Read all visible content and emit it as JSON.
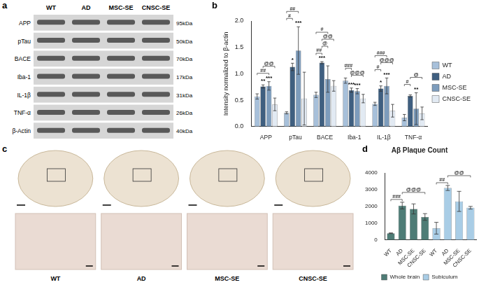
{
  "panels": {
    "a": {
      "label": "a",
      "lanes": [
        "WT",
        "AD",
        "MSC-SE",
        "CNSC-SE"
      ],
      "rows": [
        {
          "name": "APP",
          "size": "95kDa"
        },
        {
          "name": "pTau",
          "size": "50kDa"
        },
        {
          "name": "BACE",
          "size": "70kDa"
        },
        {
          "name": "Iba-1",
          "size": "17kDa"
        },
        {
          "name": "IL-1β",
          "size": "31kDa"
        },
        {
          "name": "TNF-α",
          "size": "26kDa"
        },
        {
          "name": "β-Actin",
          "size": "40kDa"
        }
      ]
    },
    "c": {
      "label": "c",
      "images": [
        "WT",
        "AD",
        "MSC-SE",
        "CNSC-SE"
      ]
    }
  },
  "chart_data": [
    {
      "label": "b",
      "type": "bar",
      "y_label": "Intensity normalized to β-actin",
      "categories": [
        "APP",
        "pTau",
        "BACE",
        "Iba-1",
        "IL-1β",
        "TNF-α"
      ],
      "series": [
        {
          "name": "WT",
          "color": "#a7c0da",
          "values": [
            0.57,
            0.26,
            0.6,
            0.87,
            0.43,
            0.17
          ],
          "errors": [
            0.05,
            0.02,
            0.05,
            0.05,
            0.03,
            0.06
          ]
        },
        {
          "name": "AD",
          "color": "#3f5f80",
          "values": [
            0.76,
            1.13,
            1.21,
            0.69,
            0.72,
            0.58
          ],
          "errors": [
            0.03,
            0.07,
            0.02,
            0.04,
            0.05,
            0.02
          ],
          "stars": [
            "**",
            "*",
            "***",
            "***",
            "*",
            null
          ]
        },
        {
          "name": "MSC-SE",
          "color": "#7d9cbc",
          "values": [
            0.77,
            1.44,
            0.9,
            0.67,
            0.77,
            0.34
          ],
          "errors": [
            0.08,
            0.45,
            0.25,
            0.05,
            0.15,
            0.3
          ],
          "stars": [
            "***",
            "***",
            null,
            "***",
            "***",
            "**"
          ]
        },
        {
          "name": "CNSC-SE",
          "color": "#e2eaf3",
          "values": [
            0.42,
            0.53,
            0.77,
            0.53,
            0.3,
            0.25
          ],
          "errors": [
            0.12,
            0.5,
            0.1,
            0.08,
            0.12,
            0.12
          ]
        }
      ],
      "ylim": [
        0,
        2
      ],
      "yticks": [
        {
          "value": 0,
          "label": "0.0"
        },
        {
          "value": 0.5,
          "label": "0.5"
        },
        {
          "value": 1,
          "label": "1.0"
        },
        {
          "value": 1.5,
          "label": "1.5"
        },
        {
          "value": 2,
          "label": "2.0"
        }
      ],
      "grid": false,
      "legend": "right",
      "brackets": [
        {
          "category": "APP",
          "from": "WT",
          "to": "MSC-SE",
          "label": "##"
        },
        {
          "category": "APP",
          "from": "AD",
          "to": "CNSC-SE",
          "label": "@@"
        },
        {
          "category": "pTau",
          "from": "WT",
          "to": "AD",
          "label": "#"
        },
        {
          "category": "pTau",
          "from": "WT",
          "to": "MSC-SE",
          "label": "##"
        },
        {
          "category": "BACE",
          "from": "WT",
          "to": "AD",
          "label": "##"
        },
        {
          "category": "BACE",
          "from": "AD",
          "to": "MSC-SE",
          "label": "@"
        },
        {
          "category": "BACE",
          "from": "AD",
          "to": "CNSC-SE",
          "label": "@@"
        },
        {
          "category": "BACE",
          "from": "WT",
          "to": "MSC-SE",
          "label": "#"
        },
        {
          "category": "Iba-1",
          "from": "AD",
          "to": "CNSC-SE",
          "label": "@@@"
        },
        {
          "category": "Iba-1",
          "from": "WT",
          "to": "AD",
          "label": "###"
        },
        {
          "category": "IL-1β",
          "from": "WT",
          "to": "AD",
          "label": "#"
        },
        {
          "category": "IL-1β",
          "from": "AD",
          "to": "CNSC-SE",
          "label": "@@@"
        },
        {
          "category": "IL-1β",
          "from": "WT",
          "to": "MSC-SE",
          "label": "###"
        },
        {
          "category": "TNF-α",
          "from": "WT",
          "to": "AD",
          "label": "#"
        },
        {
          "category": "TNF-α",
          "from": "AD",
          "to": "CNSC-SE",
          "label": "@"
        }
      ]
    },
    {
      "label": "d",
      "type": "bar",
      "title": "Aβ Plaque Count",
      "categories": [
        "WT",
        "AD",
        "MSC-SE",
        "CNSC-SE"
      ],
      "series": [
        {
          "name": "Whole brain",
          "color": "#4e7c76",
          "values": [
            400,
            2050,
            1850,
            1370
          ],
          "errors": [
            20,
            200,
            300,
            200
          ]
        },
        {
          "name": "Subiculum",
          "color": "#a9cde6",
          "values": [
            700,
            3100,
            2300,
            1920
          ],
          "errors": [
            350,
            150,
            600,
            80
          ]
        }
      ],
      "ylim": [
        0,
        4000
      ],
      "yticks": [
        0,
        1000,
        2000,
        3000,
        4000
      ],
      "grid": false,
      "legend": "bottom",
      "brackets": [
        {
          "series": "Whole brain",
          "from": "WT",
          "to": "AD",
          "label": "###"
        },
        {
          "series": "Whole brain",
          "from": "AD",
          "to": "CNSC-SE",
          "label": "@@@"
        },
        {
          "series": "Subiculum",
          "from": "WT",
          "to": "AD",
          "label": "##"
        },
        {
          "series": "Subiculum",
          "from": "AD",
          "to": "CNSC-SE",
          "label": "@@"
        }
      ]
    }
  ]
}
